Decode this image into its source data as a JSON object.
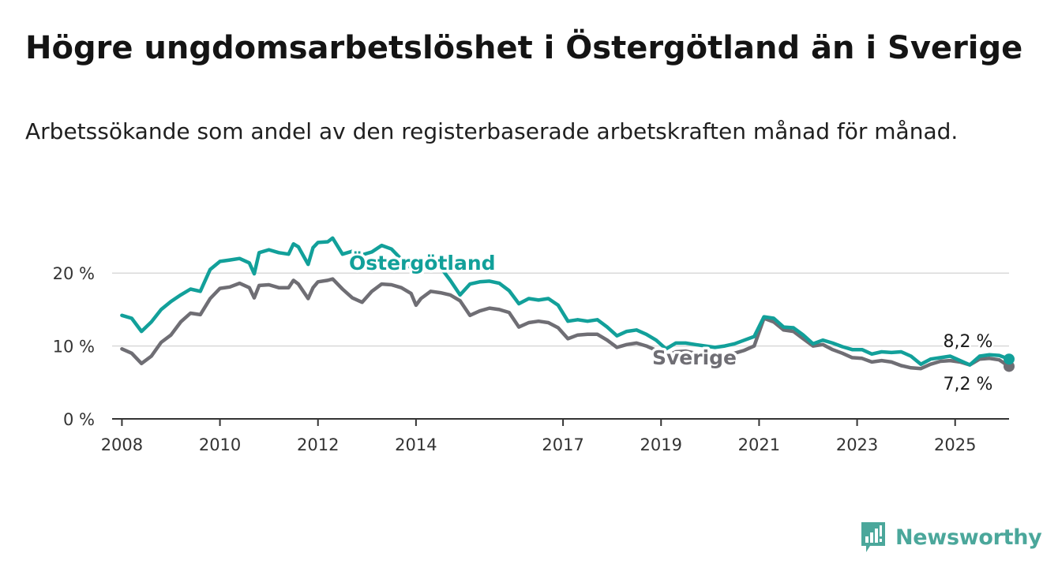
{
  "header": {
    "title": "Högre ungdomsarbetslöshet i Östergötland än i Sverige",
    "subtitle": "Arbetssökande som andel av den registerbaserade arbetskraften månad för månad."
  },
  "brand": {
    "name": "Newsworthy"
  },
  "colors": {
    "ostergotland": "#12a09a",
    "sverige": "#6f6e74",
    "grid": "#d9d9d9",
    "axis": "#333333",
    "logo": "#4ba79b"
  },
  "chart_data": {
    "type": "line",
    "ylim": [
      0,
      25
    ],
    "yticks": [
      0,
      10,
      20
    ],
    "ytick_labels": [
      "0 %",
      "10 %",
      "20 %"
    ],
    "xlim": [
      2007.8,
      2026.1
    ],
    "xticks": [
      2008,
      2010,
      2012,
      2014,
      2017,
      2019,
      2021,
      2023,
      2025
    ],
    "xtick_labels": [
      "2008",
      "2010",
      "2012",
      "2014",
      "2017",
      "2019",
      "2021",
      "2023",
      "2025"
    ],
    "grid": true,
    "series": [
      {
        "name": "Östergötland",
        "label_text": "Östergötland",
        "end_label": "8,2 %",
        "points": [
          [
            2008.0,
            14.2
          ],
          [
            2008.2,
            13.8
          ],
          [
            2008.4,
            12.0
          ],
          [
            2008.6,
            13.3
          ],
          [
            2008.8,
            15.0
          ],
          [
            2009.0,
            16.1
          ],
          [
            2009.2,
            17.0
          ],
          [
            2009.4,
            17.8
          ],
          [
            2009.6,
            17.5
          ],
          [
            2009.8,
            20.5
          ],
          [
            2010.0,
            21.6
          ],
          [
            2010.2,
            21.8
          ],
          [
            2010.4,
            22.0
          ],
          [
            2010.6,
            21.4
          ],
          [
            2010.7,
            19.9
          ],
          [
            2010.8,
            22.8
          ],
          [
            2011.0,
            23.2
          ],
          [
            2011.2,
            22.8
          ],
          [
            2011.4,
            22.6
          ],
          [
            2011.5,
            24.0
          ],
          [
            2011.6,
            23.6
          ],
          [
            2011.8,
            21.2
          ],
          [
            2011.9,
            23.5
          ],
          [
            2012.0,
            24.2
          ],
          [
            2012.2,
            24.3
          ],
          [
            2012.3,
            24.8
          ],
          [
            2012.5,
            22.6
          ],
          [
            2012.7,
            23.0
          ],
          [
            2012.9,
            22.5
          ],
          [
            2013.1,
            22.9
          ],
          [
            2013.3,
            23.8
          ],
          [
            2013.5,
            23.3
          ],
          [
            2013.7,
            21.9
          ],
          [
            2013.9,
            20.7
          ],
          [
            2014.1,
            21.0
          ],
          [
            2014.3,
            20.5
          ],
          [
            2014.5,
            20.8
          ],
          [
            2014.7,
            19.0
          ],
          [
            2014.9,
            17.0
          ],
          [
            2015.1,
            18.5
          ],
          [
            2015.3,
            18.8
          ],
          [
            2015.5,
            18.9
          ],
          [
            2015.7,
            18.6
          ],
          [
            2015.9,
            17.6
          ],
          [
            2016.1,
            15.8
          ],
          [
            2016.3,
            16.5
          ],
          [
            2016.5,
            16.3
          ],
          [
            2016.7,
            16.5
          ],
          [
            2016.9,
            15.6
          ],
          [
            2017.1,
            13.4
          ],
          [
            2017.3,
            13.6
          ],
          [
            2017.5,
            13.4
          ],
          [
            2017.7,
            13.6
          ],
          [
            2017.9,
            12.6
          ],
          [
            2018.1,
            11.4
          ],
          [
            2018.3,
            12.0
          ],
          [
            2018.5,
            12.2
          ],
          [
            2018.7,
            11.6
          ],
          [
            2018.9,
            10.8
          ],
          [
            2019.1,
            9.6
          ],
          [
            2019.3,
            10.4
          ],
          [
            2019.5,
            10.4
          ],
          [
            2019.7,
            10.2
          ],
          [
            2019.9,
            10.0
          ],
          [
            2020.1,
            9.8
          ],
          [
            2020.3,
            10.0
          ],
          [
            2020.5,
            10.3
          ],
          [
            2020.7,
            10.8
          ],
          [
            2020.9,
            11.3
          ],
          [
            2021.1,
            14.0
          ],
          [
            2021.3,
            13.8
          ],
          [
            2021.5,
            12.6
          ],
          [
            2021.7,
            12.5
          ],
          [
            2021.9,
            11.5
          ],
          [
            2022.1,
            10.3
          ],
          [
            2022.3,
            10.8
          ],
          [
            2022.5,
            10.4
          ],
          [
            2022.7,
            9.9
          ],
          [
            2022.9,
            9.5
          ],
          [
            2023.1,
            9.5
          ],
          [
            2023.3,
            8.9
          ],
          [
            2023.5,
            9.2
          ],
          [
            2023.7,
            9.1
          ],
          [
            2023.9,
            9.2
          ],
          [
            2024.1,
            8.6
          ],
          [
            2024.3,
            7.5
          ],
          [
            2024.5,
            8.2
          ],
          [
            2024.7,
            8.4
          ],
          [
            2024.9,
            8.6
          ],
          [
            2025.1,
            8.0
          ],
          [
            2025.3,
            7.4
          ],
          [
            2025.5,
            8.6
          ],
          [
            2025.7,
            8.8
          ],
          [
            2025.9,
            8.7
          ],
          [
            2026.1,
            8.2
          ]
        ]
      },
      {
        "name": "Sverige",
        "label_text": "Sverige",
        "end_label": "7,2 %",
        "points": [
          [
            2008.0,
            9.6
          ],
          [
            2008.2,
            9.0
          ],
          [
            2008.4,
            7.6
          ],
          [
            2008.6,
            8.6
          ],
          [
            2008.8,
            10.5
          ],
          [
            2009.0,
            11.5
          ],
          [
            2009.2,
            13.3
          ],
          [
            2009.4,
            14.5
          ],
          [
            2009.6,
            14.3
          ],
          [
            2009.8,
            16.5
          ],
          [
            2010.0,
            17.9
          ],
          [
            2010.2,
            18.1
          ],
          [
            2010.4,
            18.6
          ],
          [
            2010.6,
            18.0
          ],
          [
            2010.7,
            16.6
          ],
          [
            2010.8,
            18.3
          ],
          [
            2011.0,
            18.4
          ],
          [
            2011.2,
            18.0
          ],
          [
            2011.4,
            18.0
          ],
          [
            2011.5,
            19.0
          ],
          [
            2011.6,
            18.5
          ],
          [
            2011.8,
            16.5
          ],
          [
            2011.9,
            18.0
          ],
          [
            2012.0,
            18.8
          ],
          [
            2012.2,
            19.0
          ],
          [
            2012.3,
            19.2
          ],
          [
            2012.5,
            17.8
          ],
          [
            2012.7,
            16.6
          ],
          [
            2012.9,
            16.0
          ],
          [
            2013.1,
            17.5
          ],
          [
            2013.3,
            18.5
          ],
          [
            2013.5,
            18.4
          ],
          [
            2013.7,
            18.0
          ],
          [
            2013.9,
            17.2
          ],
          [
            2014.0,
            15.6
          ],
          [
            2014.1,
            16.5
          ],
          [
            2014.3,
            17.5
          ],
          [
            2014.5,
            17.3
          ],
          [
            2014.7,
            17.0
          ],
          [
            2014.9,
            16.2
          ],
          [
            2015.1,
            14.2
          ],
          [
            2015.3,
            14.8
          ],
          [
            2015.5,
            15.2
          ],
          [
            2015.7,
            15.0
          ],
          [
            2015.9,
            14.6
          ],
          [
            2016.1,
            12.6
          ],
          [
            2016.3,
            13.2
          ],
          [
            2016.5,
            13.4
          ],
          [
            2016.7,
            13.2
          ],
          [
            2016.9,
            12.5
          ],
          [
            2017.1,
            11.0
          ],
          [
            2017.3,
            11.5
          ],
          [
            2017.5,
            11.6
          ],
          [
            2017.7,
            11.6
          ],
          [
            2017.9,
            10.8
          ],
          [
            2018.1,
            9.8
          ],
          [
            2018.3,
            10.2
          ],
          [
            2018.5,
            10.4
          ],
          [
            2018.7,
            10.0
          ],
          [
            2018.9,
            9.4
          ],
          [
            2019.1,
            8.6
          ],
          [
            2019.3,
            9.2
          ],
          [
            2019.5,
            9.3
          ],
          [
            2019.7,
            9.0
          ],
          [
            2019.9,
            8.8
          ],
          [
            2020.1,
            8.5
          ],
          [
            2020.3,
            8.6
          ],
          [
            2020.5,
            9.0
          ],
          [
            2020.7,
            9.4
          ],
          [
            2020.9,
            10.0
          ],
          [
            2021.1,
            13.8
          ],
          [
            2021.3,
            13.3
          ],
          [
            2021.5,
            12.2
          ],
          [
            2021.7,
            12.0
          ],
          [
            2021.9,
            11.0
          ],
          [
            2022.1,
            10.0
          ],
          [
            2022.3,
            10.2
          ],
          [
            2022.5,
            9.5
          ],
          [
            2022.7,
            9.0
          ],
          [
            2022.9,
            8.4
          ],
          [
            2023.1,
            8.3
          ],
          [
            2023.3,
            7.8
          ],
          [
            2023.5,
            8.0
          ],
          [
            2023.7,
            7.8
          ],
          [
            2023.9,
            7.3
          ],
          [
            2024.1,
            7.0
          ],
          [
            2024.3,
            6.9
          ],
          [
            2024.5,
            7.5
          ],
          [
            2024.7,
            7.9
          ],
          [
            2024.9,
            8.0
          ],
          [
            2025.1,
            7.8
          ],
          [
            2025.3,
            7.4
          ],
          [
            2025.5,
            8.2
          ],
          [
            2025.7,
            8.3
          ],
          [
            2025.9,
            8.1
          ],
          [
            2026.1,
            7.2
          ]
        ]
      }
    ]
  }
}
